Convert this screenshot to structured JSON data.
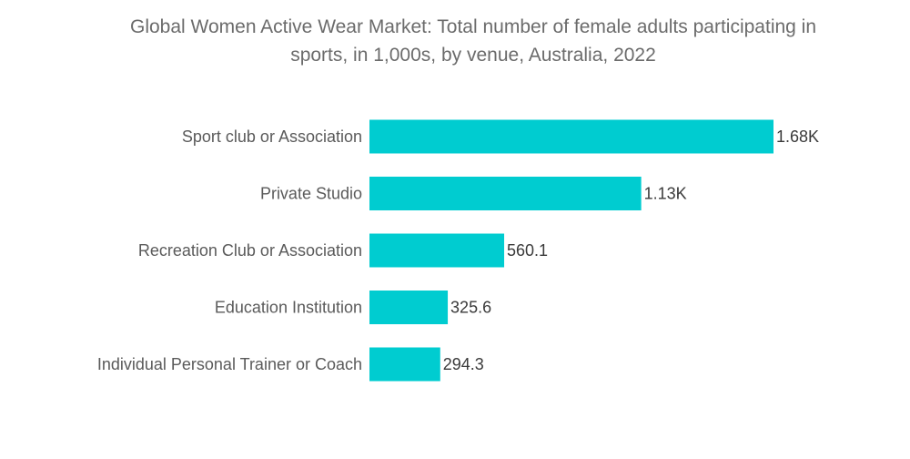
{
  "chart_data": {
    "type": "bar",
    "orientation": "horizontal",
    "title_lines": [
      "Global Women Active Wear Market: Total number of female adults participating in",
      "sports, in 1,000s, by venue, Australia, 2022"
    ],
    "categories": [
      "Sport club or Association",
      "Private Studio",
      "Recreation Club or Association",
      "Education Institution",
      "Individual Personal Trainer or Coach"
    ],
    "values": [
      1680,
      1130,
      560.1,
      325.6,
      294.3
    ],
    "value_labels": [
      "1.68K",
      "1.13K",
      "560.1",
      "325.6",
      "294.3"
    ],
    "xlim": [
      0,
      1680
    ],
    "grid": false,
    "legend": "none",
    "bar_color": "#00ccd0"
  }
}
